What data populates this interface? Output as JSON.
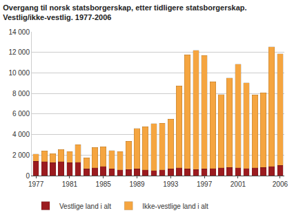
{
  "chart_data": {
    "type": "bar",
    "stacked": true,
    "title": [
      "Overgang til norsk statsborgerskap, etter tidligere statsborgerskap.",
      "Vestlig/ikke-vestlig. 1977-2006"
    ],
    "categories": [
      "1977",
      null,
      null,
      null,
      "1981",
      null,
      null,
      null,
      "1985",
      null,
      null,
      null,
      "1989",
      null,
      null,
      null,
      "1993",
      null,
      null,
      null,
      "1997",
      null,
      null,
      null,
      "2001",
      null,
      null,
      null,
      null,
      "2006"
    ],
    "series": [
      {
        "name": "Vestlige land i alt",
        "color": "#9b1b1f",
        "values": [
          1400,
          1350,
          1250,
          1350,
          1250,
          1300,
          650,
          750,
          900,
          650,
          550,
          600,
          650,
          550,
          500,
          550,
          650,
          750,
          650,
          600,
          650,
          700,
          750,
          800,
          750,
          700,
          750,
          800,
          900,
          1000
        ]
      },
      {
        "name": "Ikke-vestlige land i alt",
        "color": "#f5a540",
        "values": [
          700,
          1050,
          900,
          1200,
          1100,
          1700,
          1100,
          2000,
          1900,
          1800,
          1800,
          2750,
          3950,
          4200,
          4550,
          4550,
          4850,
          8000,
          11100,
          11600,
          11050,
          8450,
          7150,
          8700,
          10100,
          8350,
          7100,
          7250,
          11650,
          10850
        ]
      }
    ],
    "ylim": [
      0,
      14000
    ],
    "yticks": [
      0,
      {
        "value": 2000,
        "label": "2 000"
      },
      {
        "value": 4000,
        "label": "4 000"
      },
      {
        "value": 6000,
        "label": "6 000"
      },
      {
        "value": 8000,
        "label": "8 000"
      },
      {
        "value": 10000,
        "label": "10 000"
      },
      {
        "value": 12000,
        "label": "12 000"
      },
      {
        "value": 14000,
        "label": "14 000"
      }
    ],
    "grid": true,
    "legend": "bottom left"
  }
}
